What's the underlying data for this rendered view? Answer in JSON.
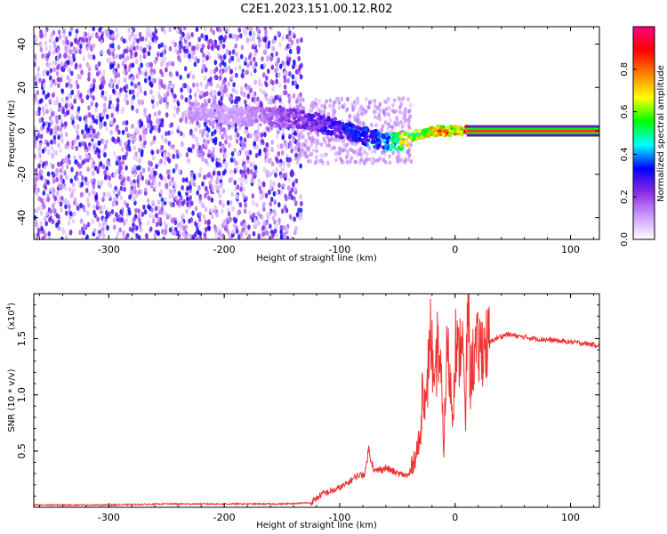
{
  "figure": {
    "title": "C2E1.2023.151.00.12.R02"
  },
  "chart_data": [
    {
      "type": "heatmap",
      "xlabel": "Height of straight line (km)",
      "ylabel": "Frequency (Hz)",
      "xlim": [
        -365,
        125
      ],
      "ylim": [
        -50,
        48
      ],
      "xticks": [
        -300,
        -200,
        -100,
        0,
        100
      ],
      "yticks": [
        -40,
        -20,
        0,
        20,
        40
      ],
      "grid": false,
      "colorbar": {
        "label": "Normalized spectral amplitude",
        "range": [
          0,
          1
        ],
        "ticks": [
          "0.0",
          "0.2",
          "0.4",
          "0.6",
          "0.8"
        ],
        "colors": [
          "#ffffff",
          "#cc99ff",
          "#8a2be2",
          "#0000ff",
          "#00ffff",
          "#00ff00",
          "#ffff00",
          "#ff8000",
          "#ff0000",
          "#ff0080"
        ]
      },
      "noise_region_x": [
        -365,
        -138
      ],
      "ridge": [
        {
          "x": -230,
          "freq": 9,
          "amp": 0.15
        },
        {
          "x": -190,
          "freq": 7,
          "amp": 0.12
        },
        {
          "x": -140,
          "freq": 6,
          "amp": 0.25
        },
        {
          "x": -120,
          "freq": 4,
          "amp": 0.3
        },
        {
          "x": -100,
          "freq": 1,
          "amp": 0.35
        },
        {
          "x": -80,
          "freq": -2,
          "amp": 0.4
        },
        {
          "x": -60,
          "freq": -5,
          "amp": 0.45
        },
        {
          "x": -45,
          "freq": -5,
          "amp": 0.8
        },
        {
          "x": -35,
          "freq": -2,
          "amp": 0.75
        },
        {
          "x": -20,
          "freq": 0,
          "amp": 0.85
        },
        {
          "x": -5,
          "freq": 0,
          "amp": 0.9
        },
        {
          "x": 10,
          "freq": 0,
          "amp": 0.95
        },
        {
          "x": 125,
          "freq": 0,
          "amp": 0.95
        }
      ]
    },
    {
      "type": "line",
      "xlabel": "Height of straight line (km)",
      "ylabel": "SNR (10 * v/v)",
      "y_multiplier": "(x10",
      "y_multiplier_exp": "4",
      "y_multiplier_close": ")",
      "xlim": [
        -365,
        125
      ],
      "ylim": [
        0,
        1.9
      ],
      "xticks": [
        -300,
        -200,
        -100,
        0,
        100
      ],
      "yticks": [
        0.5,
        1.0,
        1.5
      ],
      "ytick_labels": [
        "0.5",
        "1.0",
        "1.5"
      ],
      "grid": false,
      "series": [
        {
          "color": "#ee3333",
          "x": [
            -365,
            -300,
            -250,
            -200,
            -150,
            -125,
            -115,
            -105,
            -95,
            -85,
            -78,
            -75,
            -70,
            -60,
            -50,
            -40,
            -35,
            -30,
            -28,
            -25,
            -22,
            -20,
            -18,
            -15,
            -12,
            -10,
            -7,
            -5,
            -2,
            0,
            3,
            6,
            9,
            11,
            13,
            15,
            18,
            22,
            28,
            35,
            45,
            55,
            70,
            90,
            110,
            125
          ],
          "y": [
            0.02,
            0.02,
            0.03,
            0.03,
            0.03,
            0.04,
            0.12,
            0.15,
            0.2,
            0.28,
            0.3,
            0.52,
            0.32,
            0.35,
            0.3,
            0.28,
            0.45,
            0.6,
            1.2,
            0.8,
            1.6,
            1.4,
            0.9,
            1.5,
            1.1,
            0.5,
            1.45,
            1.2,
            0.8,
            1.5,
            1.3,
            1.6,
            0.7,
            1.95,
            1.1,
            1.3,
            1.38,
            1.42,
            1.45,
            1.5,
            1.54,
            1.52,
            1.5,
            1.48,
            1.46,
            1.44
          ]
        }
      ]
    }
  ]
}
